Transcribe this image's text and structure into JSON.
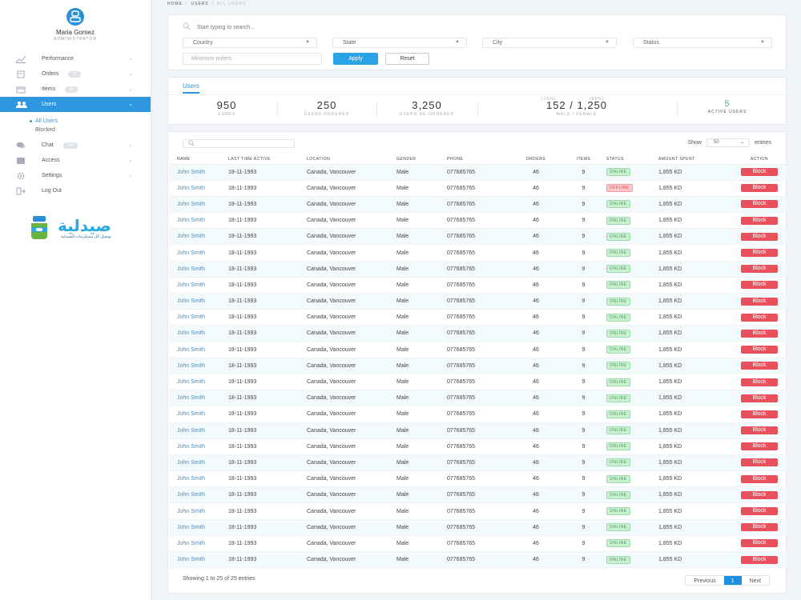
{
  "profile": {
    "name": "Maria Gomez",
    "role": "ADMINISTRATOR"
  },
  "sidebar": {
    "items": [
      {
        "label": "Performance",
        "icon": "chart-icon",
        "badge": ""
      },
      {
        "label": "Orders",
        "icon": "orders-icon",
        "badge": "12"
      },
      {
        "label": "Items",
        "icon": "items-icon",
        "badge": "88"
      },
      {
        "label": "Users",
        "icon": "users-icon",
        "badge": ""
      },
      {
        "label": "Chat",
        "icon": "chat-icon",
        "badge": "124"
      },
      {
        "label": "Access",
        "icon": "access-icon",
        "badge": ""
      },
      {
        "label": "Settings",
        "icon": "settings-icon",
        "badge": ""
      },
      {
        "label": "Log Out",
        "icon": "logout-icon",
        "badge": ""
      }
    ],
    "subitems": [
      "All Users",
      "Blocked"
    ]
  },
  "logo": {
    "arabic": "صيدلية",
    "tagline": "توصيل كل مستلزمات الصيدلية"
  },
  "breadcrumb": {
    "home": "HOME",
    "users": "USERS",
    "current": "ALL USERS"
  },
  "filters": {
    "search_placeholder": "Start typing to search...",
    "country": "Country",
    "state": "State",
    "city": "City",
    "status": "Status",
    "min_orders_placeholder": "Minimum orders",
    "apply": "Apply",
    "reset": "Reset"
  },
  "stats": {
    "tab": "Users",
    "items": [
      {
        "value": "950",
        "label": "USERS"
      },
      {
        "value": "250",
        "label": "USERS ORDERED"
      },
      {
        "value": "3,250",
        "label": "USERS RE-ORDERED"
      },
      {
        "value": "152 / 1,250",
        "label": "MALE / FEMALE",
        "pct_left": "(10%)",
        "pct_right": "(85%)"
      },
      {
        "value": "5",
        "label": "ACTIVE USERS"
      }
    ]
  },
  "table": {
    "search_placeholder": "",
    "show_label": "Show",
    "entries_label": "entries",
    "page_size": "50",
    "columns": [
      "NAME",
      "LAST TIME ACTIVE",
      "LOCATION",
      "GENDER",
      "PHONE",
      "ORDERS",
      "ITEMS",
      "STATUS",
      "AMOUNT SPENT",
      "ACTION"
    ],
    "row": {
      "name": "John Smith",
      "last_active": "18-11-1993",
      "location": "Canada, Vancouver",
      "gender": "Male",
      "phone": "077685765",
      "orders": "46",
      "items": "9",
      "amount": "1,855 KD",
      "action": "Block"
    },
    "status_online": "ONLINE",
    "status_offline": "OFFLINE",
    "statuses": [
      "online",
      "offline",
      "online",
      "online",
      "online",
      "online",
      "online",
      "online",
      "online",
      "online",
      "online",
      "online",
      "online",
      "online",
      "online",
      "online",
      "online",
      "online",
      "online",
      "online",
      "online",
      "online",
      "online",
      "online",
      "online"
    ],
    "footer": "Showing 1 to 25 of 25 entries",
    "pagination": {
      "previous": "Previous",
      "current": "1",
      "next": "Next"
    }
  },
  "colors": {
    "accent": "#2f97e0",
    "danger": "#e8505b",
    "online": "#c9f0cf",
    "offline": "#f9c9c9"
  }
}
